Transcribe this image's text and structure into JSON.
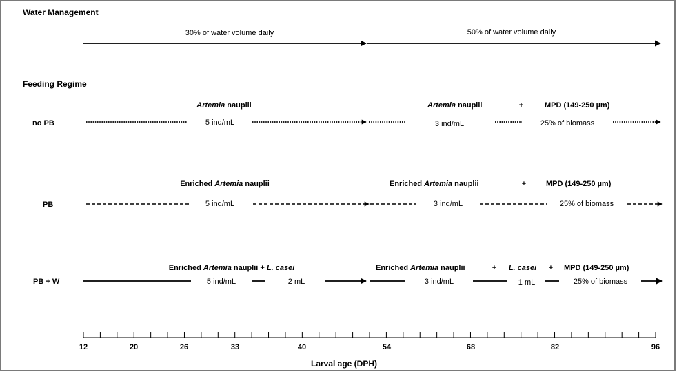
{
  "sections": {
    "water_title": "Water Management",
    "feeding_title": "Feeding Regime"
  },
  "water": {
    "phase1": "30% of water volume daily",
    "phase2": "50% of water volume daily"
  },
  "rows": {
    "nopb": {
      "label": "no PB",
      "h1": [
        "Artemia",
        " nauplii"
      ],
      "h2": [
        "Artemia",
        " nauplii",
        "+",
        "MPD (149-250 µm)"
      ],
      "v1": "5 ind/mL",
      "v2": "3 ind/mL",
      "v3": "25% of biomass"
    },
    "pb": {
      "label": "PB",
      "h1": [
        "Enriched ",
        "Artemia",
        " nauplii"
      ],
      "h2": [
        "Enriched ",
        "Artemia",
        " nauplii",
        "+",
        "MPD (149-250 µm)"
      ],
      "v1": "5 ind/mL",
      "v2": "3 ind/mL",
      "v3": "25% of biomass"
    },
    "pbw": {
      "label": "PB + W",
      "h1": [
        "Enriched ",
        "Artemia",
        " nauplii + ",
        "L. casei"
      ],
      "h2": [
        "Enriched ",
        "Artemia",
        " nauplii",
        "+",
        "L. casei",
        "+",
        "MPD (149-250 µm)"
      ],
      "v1": "5 ind/mL",
      "v1b": "2 mL",
      "v2": "3 ind/mL",
      "v2b": "1 mL",
      "v3": "25% of biomass"
    }
  },
  "axis": {
    "ticks": [
      "12",
      "20",
      "26",
      "33",
      "40",
      "54",
      "68",
      "82",
      "96"
    ],
    "title": "Larval age (DPH)"
  }
}
